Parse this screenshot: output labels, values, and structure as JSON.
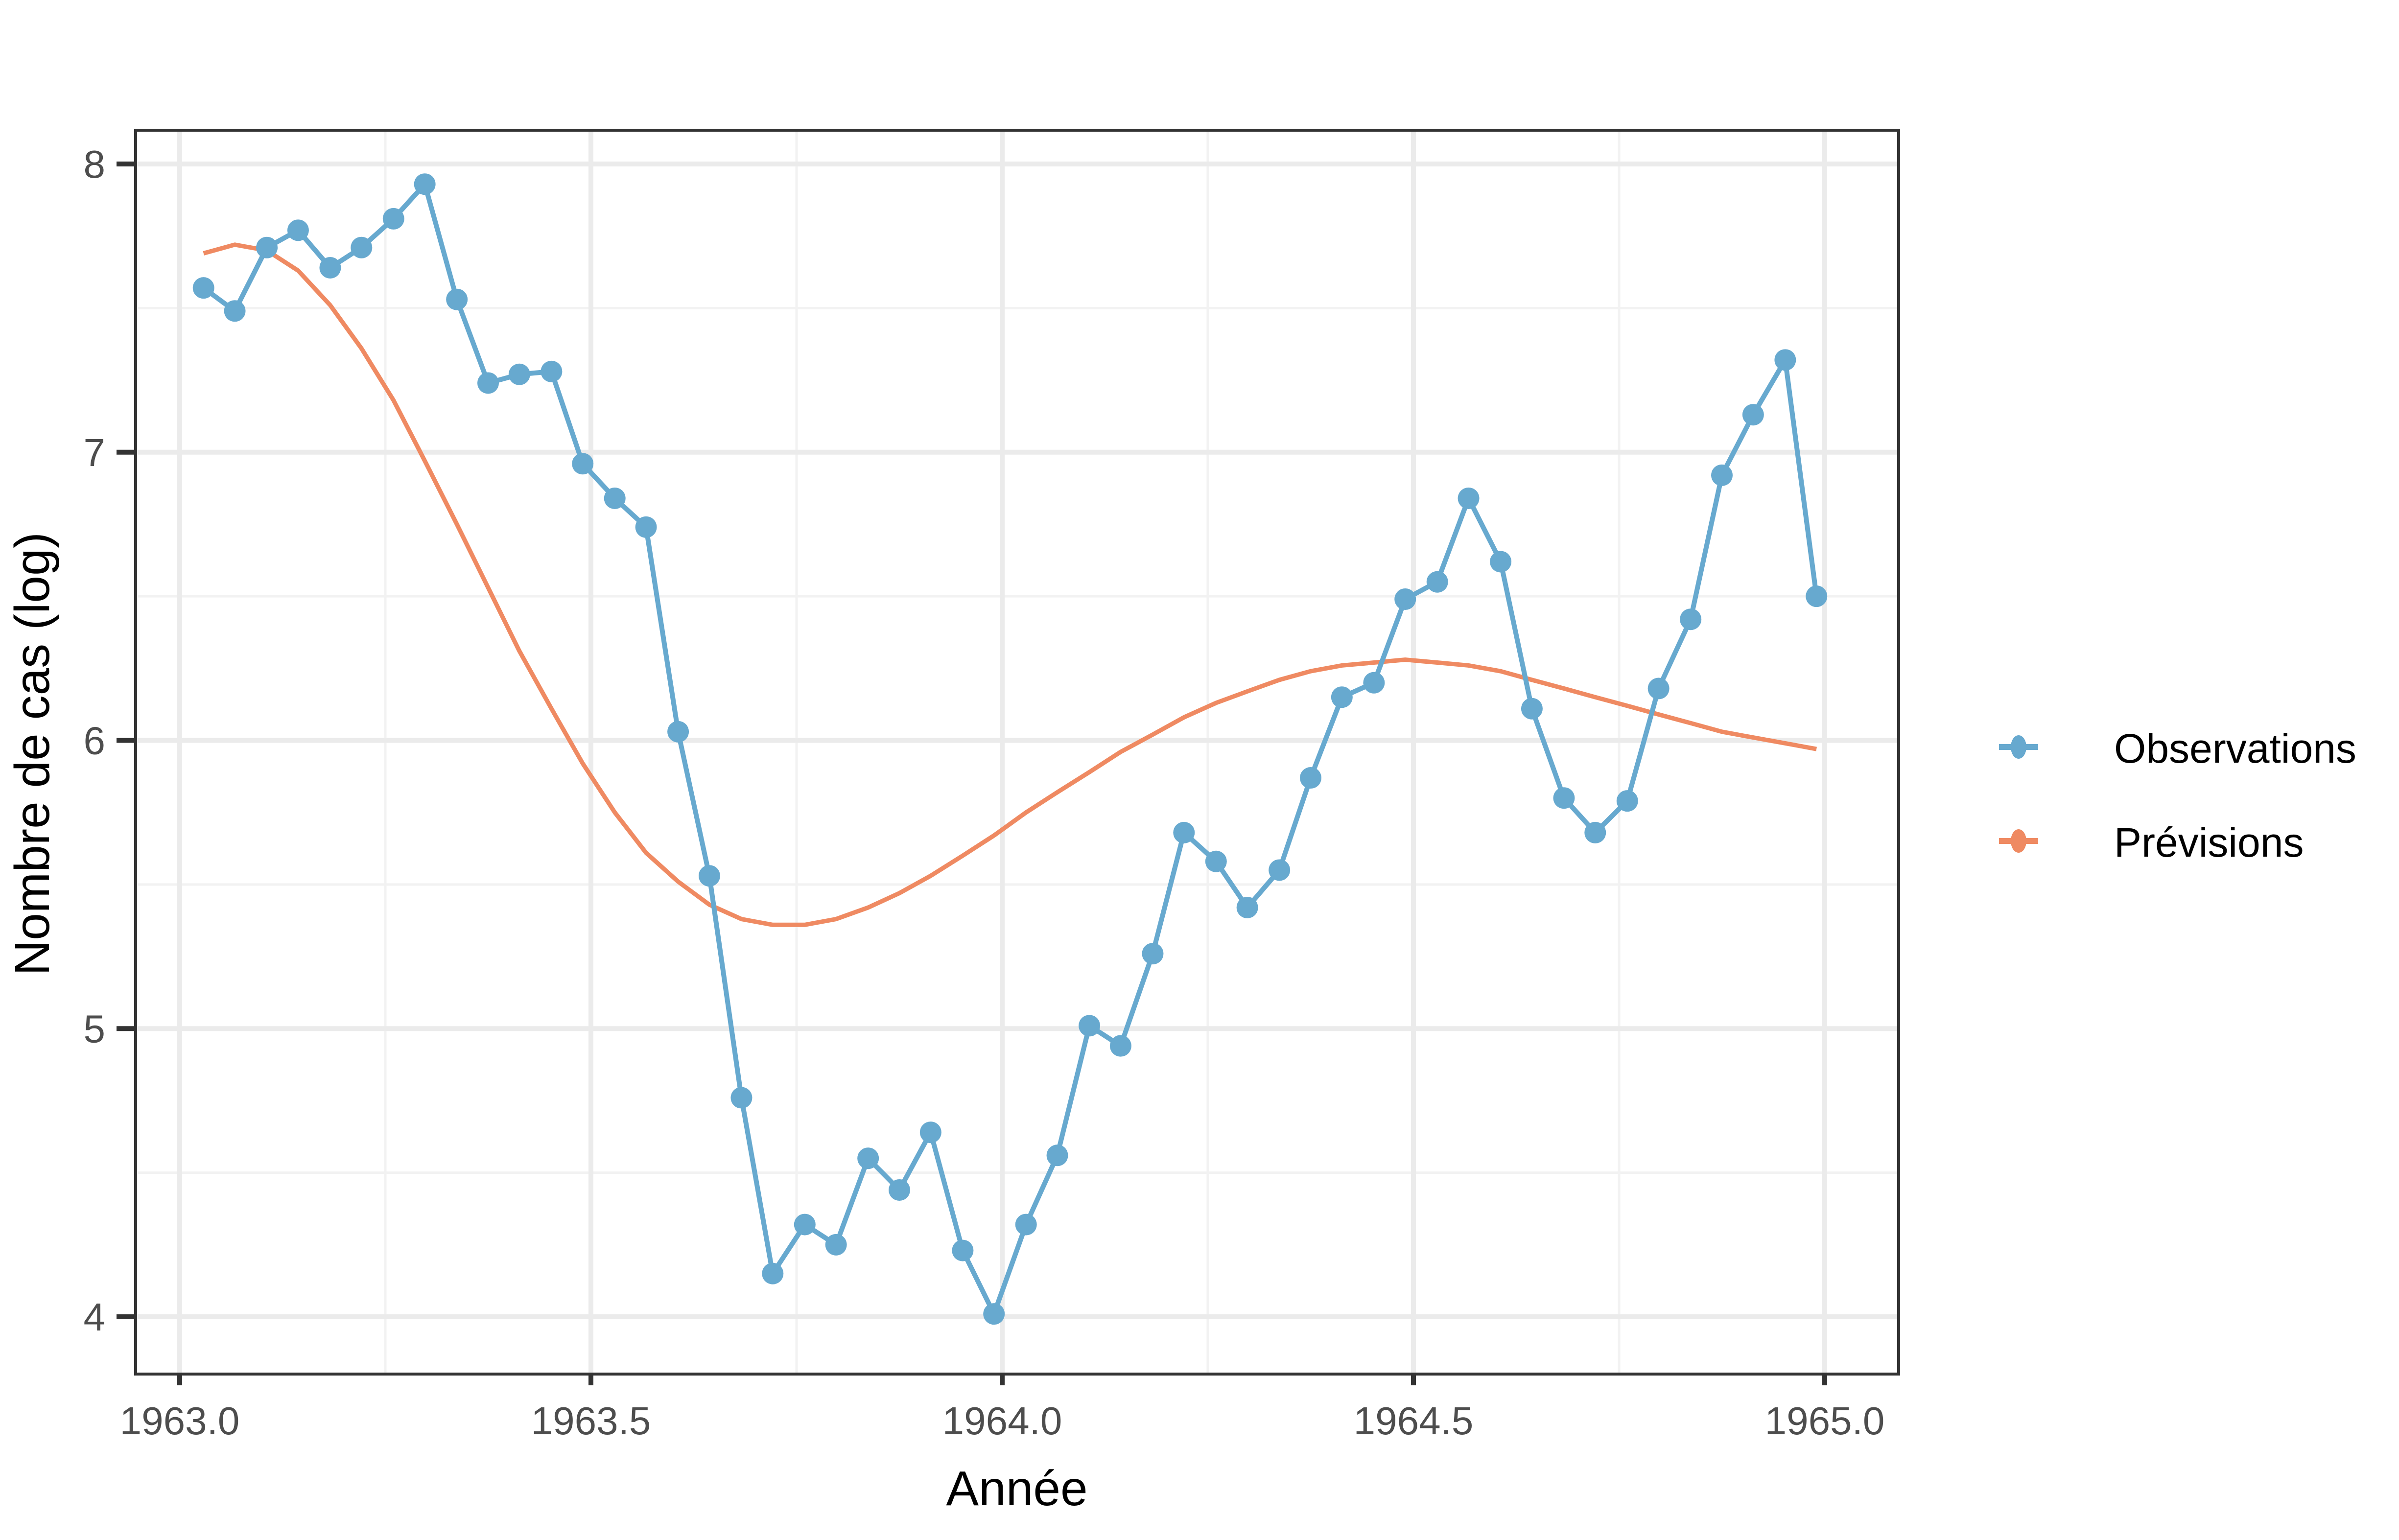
{
  "chart_data": {
    "type": "line",
    "title": "",
    "xlabel": "Année",
    "ylabel": "Nombre de cas (log)",
    "xlim": [
      1962.93,
      1965.13
    ],
    "ylim": [
      3.82,
      8.12
    ],
    "x_ticks": [
      1963.0,
      1963.5,
      1964.0,
      1964.5,
      1965.0
    ],
    "x_tick_labels": [
      "1963.0",
      "1963.5",
      "1964.0",
      "1964.5",
      "1965.0"
    ],
    "y_ticks": [
      4,
      5,
      6,
      7,
      8
    ],
    "y_tick_labels": [
      "4",
      "5",
      "6",
      "7",
      "8"
    ],
    "grid": true,
    "legend_position": "right",
    "x": [
      1963.029,
      1963.067,
      1963.106,
      1963.144,
      1963.183,
      1963.221,
      1963.26,
      1963.298,
      1963.337,
      1963.375,
      1963.413,
      1963.452,
      1963.49,
      1963.529,
      1963.567,
      1963.606,
      1963.644,
      1963.683,
      1963.721,
      1963.76,
      1963.798,
      1963.837,
      1963.875,
      1963.913,
      1963.952,
      1963.99,
      1964.029,
      1964.067,
      1964.106,
      1964.144,
      1964.183,
      1964.221,
      1964.26,
      1964.298,
      1964.337,
      1964.375,
      1964.413,
      1964.452,
      1964.49,
      1964.529,
      1964.567,
      1964.606,
      1964.644,
      1964.683,
      1964.721,
      1964.76,
      1964.798,
      1964.837,
      1964.875,
      1964.913,
      1964.952,
      1964.99
    ],
    "series": [
      {
        "name": "Observations",
        "color": "#67a9cf",
        "markers": true,
        "values": [
          7.57,
          7.49,
          7.71,
          7.77,
          7.64,
          7.71,
          7.81,
          7.93,
          7.53,
          7.24,
          7.27,
          7.28,
          6.96,
          6.84,
          6.74,
          6.03,
          5.53,
          4.76,
          4.15,
          4.32,
          4.25,
          4.55,
          4.44,
          4.64,
          4.23,
          4.01,
          4.32,
          4.56,
          5.01,
          4.94,
          5.26,
          5.68,
          5.58,
          5.42,
          5.55,
          5.87,
          6.15,
          6.2,
          6.49,
          6.55,
          6.84,
          6.62,
          6.11,
          5.8,
          5.68,
          5.79,
          6.18,
          6.42,
          6.92,
          7.13,
          7.32,
          6.5
        ]
      },
      {
        "name": "Prévisions",
        "color": "#ef8a62",
        "markers": false,
        "values": [
          7.69,
          7.72,
          7.7,
          7.63,
          7.51,
          7.36,
          7.18,
          6.97,
          6.75,
          6.53,
          6.31,
          6.11,
          5.92,
          5.75,
          5.61,
          5.51,
          5.43,
          5.38,
          5.36,
          5.36,
          5.38,
          5.42,
          5.47,
          5.53,
          5.6,
          5.67,
          5.75,
          5.82,
          5.89,
          5.96,
          6.02,
          6.08,
          6.13,
          6.17,
          6.21,
          6.24,
          6.26,
          6.27,
          6.28,
          6.27,
          6.26,
          6.24,
          6.21,
          6.18,
          6.15,
          6.12,
          6.09,
          6.06,
          6.03,
          6.01,
          5.99,
          5.97
        ]
      }
    ]
  },
  "legend": {
    "items": [
      {
        "label": "Observations",
        "color": "#67a9cf"
      },
      {
        "label": "Prévisions",
        "color": "#ef8a62"
      }
    ]
  },
  "colors": {
    "panel_border": "#333333",
    "grid_major": "#ebebeb",
    "grid_minor": "#f2f2f2",
    "tick_text": "#4d4d4d"
  }
}
